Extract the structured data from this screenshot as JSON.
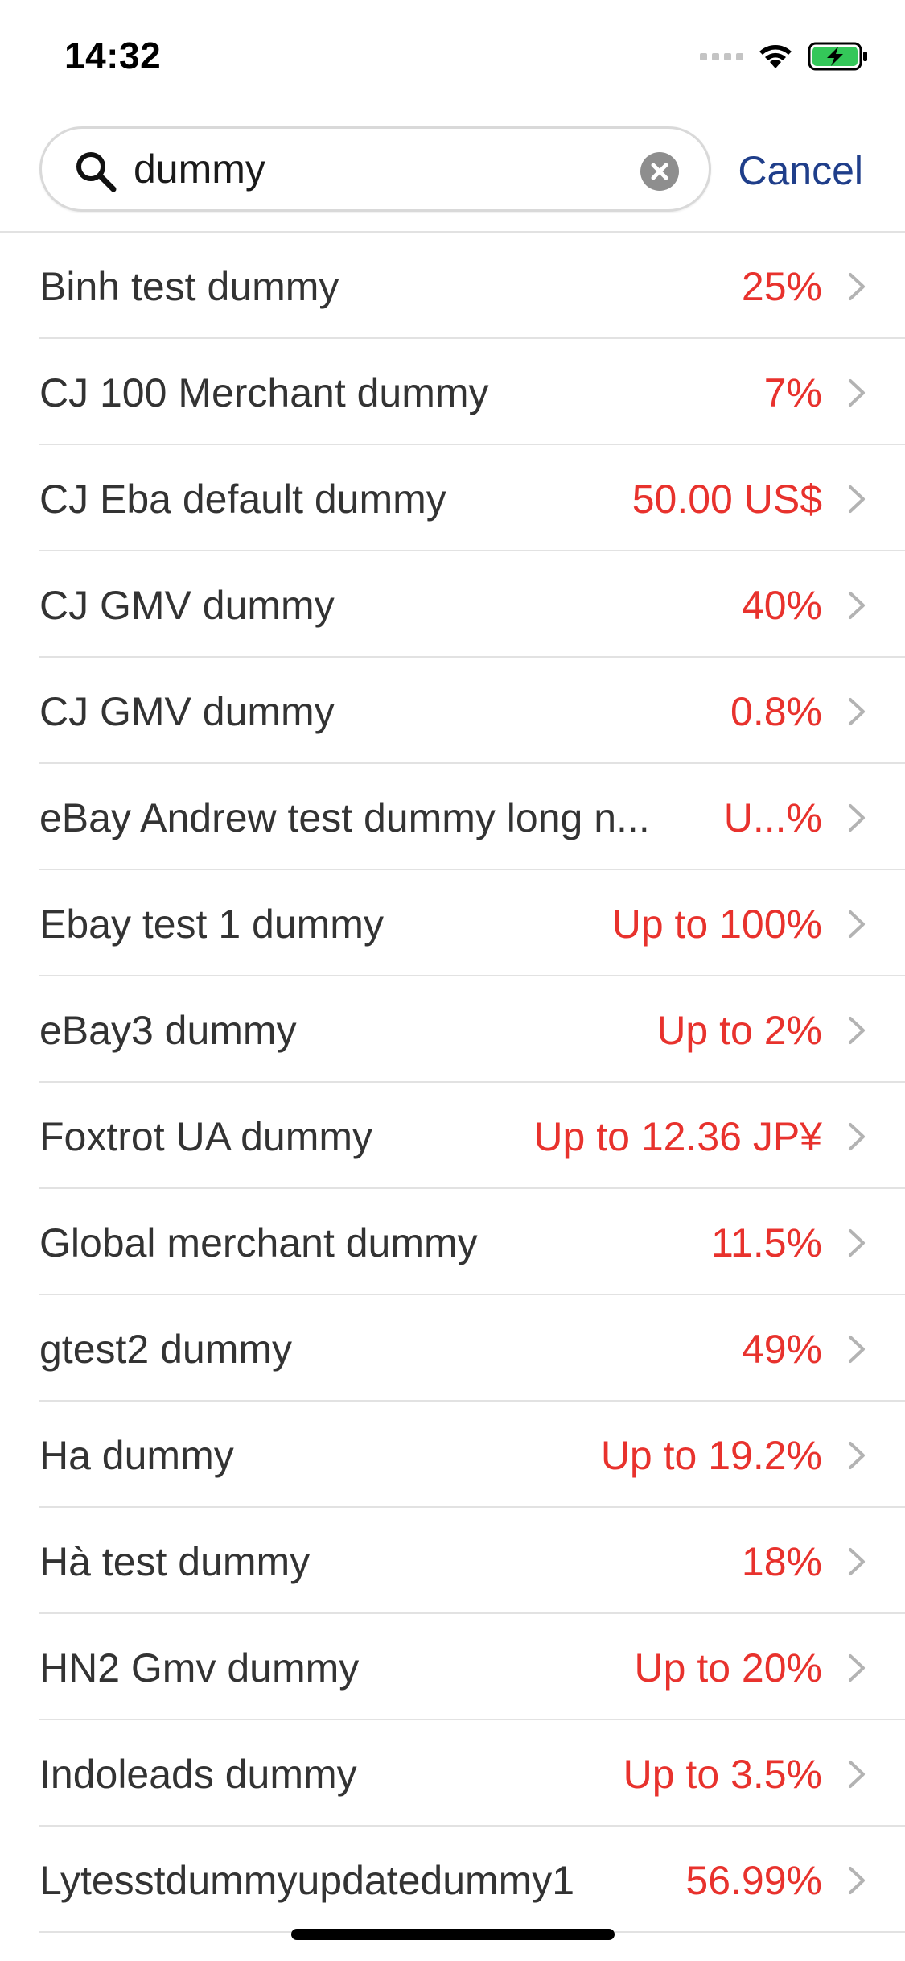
{
  "status_bar": {
    "time": "14:32"
  },
  "search": {
    "query": "dummy",
    "placeholder": "",
    "cancel_label": "Cancel"
  },
  "results": [
    {
      "name": "Binh test dummy",
      "value": "25%"
    },
    {
      "name": "CJ 100 Merchant dummy",
      "value": "7%"
    },
    {
      "name": "CJ Eba default dummy",
      "value": "50.00 US$"
    },
    {
      "name": "CJ GMV dummy",
      "value": "40%"
    },
    {
      "name": "CJ GMV dummy",
      "value": "0.8%"
    },
    {
      "name": "eBay Andrew test dummy long n...",
      "value": "U...%"
    },
    {
      "name": "Ebay test 1 dummy",
      "value": "Up to 100%"
    },
    {
      "name": "eBay3 dummy",
      "value": "Up to 2%"
    },
    {
      "name": "Foxtrot UA dummy",
      "value": "Up to 12.36 JP¥"
    },
    {
      "name": "Global merchant dummy",
      "value": "11.5%"
    },
    {
      "name": "gtest2 dummy",
      "value": "49%"
    },
    {
      "name": "Ha dummy",
      "value": "Up to 19.2%"
    },
    {
      "name": "Hà test dummy",
      "value": "18%"
    },
    {
      "name": "HN2 Gmv dummy",
      "value": "Up to 20%"
    },
    {
      "name": "Indoleads dummy",
      "value": "Up to 3.5%"
    },
    {
      "name": "Lytesstdummyupdatedummy1",
      "value": "56.99%"
    }
  ],
  "colors": {
    "accent": "#1f3e8a",
    "value": "#e8322d",
    "text": "#333333",
    "divider": "#e2e2e2"
  },
  "icons": {
    "search": "search-icon",
    "clear": "clear-icon",
    "chevron": "chevron-right-icon",
    "wifi": "wifi-icon",
    "battery": "battery-charging-icon"
  }
}
